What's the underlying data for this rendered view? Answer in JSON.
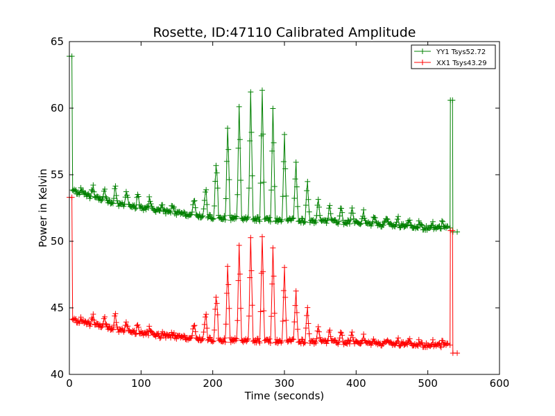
{
  "chart_data": {
    "type": "line",
    "title": "Rosette, ID:47110 Calibrated Amplitude",
    "xlabel": "Time (seconds)",
    "ylabel": "Power in Kelvin",
    "xlim": [
      0,
      600
    ],
    "ylim": [
      40,
      65
    ],
    "xticks": [
      0,
      100,
      200,
      300,
      400,
      500,
      600
    ],
    "yticks": [
      40,
      45,
      50,
      55,
      60,
      65
    ],
    "grid": false,
    "legend_position": "top-right",
    "marker": "+",
    "series": [
      {
        "name": "YY1 Tsys52.72",
        "color": "#008000",
        "start": {
          "x": 0,
          "y": 63.9
        },
        "end": {
          "x": 533,
          "y": 60.6
        },
        "final": {
          "x": 541,
          "y": 50.7
        },
        "baseline": [
          [
            5,
            53.8
          ],
          [
            50,
            53.0
          ],
          [
            100,
            52.5
          ],
          [
            150,
            52.1
          ],
          [
            200,
            51.8
          ],
          [
            300,
            51.6
          ],
          [
            400,
            51.4
          ],
          [
            500,
            51.0
          ],
          [
            528,
            51.0
          ]
        ],
        "peaks": [
          [
            18,
            53.9
          ],
          [
            33,
            54.0
          ],
          [
            49,
            54.1
          ],
          [
            64,
            54.0
          ],
          [
            80,
            53.9
          ],
          [
            96,
            53.6
          ],
          [
            112,
            53.2
          ],
          [
            128,
            52.8
          ],
          [
            144,
            52.6
          ],
          [
            174,
            53.0
          ],
          [
            190,
            54.2
          ],
          [
            205,
            56.5
          ],
          [
            221,
            59.0
          ],
          [
            237,
            60.5
          ],
          [
            253,
            61.5
          ],
          [
            269,
            61.2
          ],
          [
            284,
            60.0
          ],
          [
            300,
            58.0
          ],
          [
            316,
            56.2
          ],
          [
            332,
            54.5
          ],
          [
            347,
            53.3
          ],
          [
            363,
            52.8
          ],
          [
            379,
            52.6
          ],
          [
            395,
            52.4
          ],
          [
            410,
            52.3
          ],
          [
            426,
            52.2
          ],
          [
            442,
            52.0
          ],
          [
            458,
            51.8
          ],
          [
            473,
            51.7
          ],
          [
            489,
            51.6
          ],
          [
            505,
            51.5
          ],
          [
            520,
            51.4
          ]
        ]
      },
      {
        "name": "XX1 Tsys43.29",
        "color": "#ff0000",
        "start": {
          "x": 0,
          "y": 53.3
        },
        "end": {
          "x": 533,
          "y": 50.8
        },
        "final": {
          "x": 541,
          "y": 41.6
        },
        "baseline": [
          [
            5,
            44.1
          ],
          [
            50,
            43.5
          ],
          [
            100,
            43.1
          ],
          [
            150,
            42.8
          ],
          [
            200,
            42.6
          ],
          [
            300,
            42.5
          ],
          [
            400,
            42.4
          ],
          [
            500,
            42.2
          ],
          [
            528,
            42.2
          ]
        ],
        "peaks": [
          [
            18,
            44.1
          ],
          [
            33,
            44.3
          ],
          [
            49,
            44.5
          ],
          [
            64,
            44.4
          ],
          [
            80,
            44.0
          ],
          [
            96,
            43.7
          ],
          [
            112,
            43.4
          ],
          [
            128,
            43.0
          ],
          [
            144,
            42.9
          ],
          [
            174,
            43.6
          ],
          [
            190,
            44.8
          ],
          [
            205,
            46.5
          ],
          [
            221,
            48.5
          ],
          [
            237,
            50.0
          ],
          [
            253,
            50.5
          ],
          [
            269,
            50.2
          ],
          [
            284,
            49.5
          ],
          [
            300,
            48.0
          ],
          [
            316,
            46.5
          ],
          [
            332,
            45.0
          ],
          [
            347,
            43.7
          ],
          [
            363,
            43.4
          ],
          [
            379,
            43.2
          ],
          [
            395,
            43.0
          ],
          [
            410,
            42.9
          ],
          [
            426,
            42.8
          ],
          [
            442,
            42.7
          ],
          [
            458,
            42.6
          ],
          [
            473,
            42.7
          ],
          [
            489,
            42.6
          ],
          [
            505,
            42.5
          ],
          [
            520,
            42.4
          ]
        ]
      }
    ]
  }
}
